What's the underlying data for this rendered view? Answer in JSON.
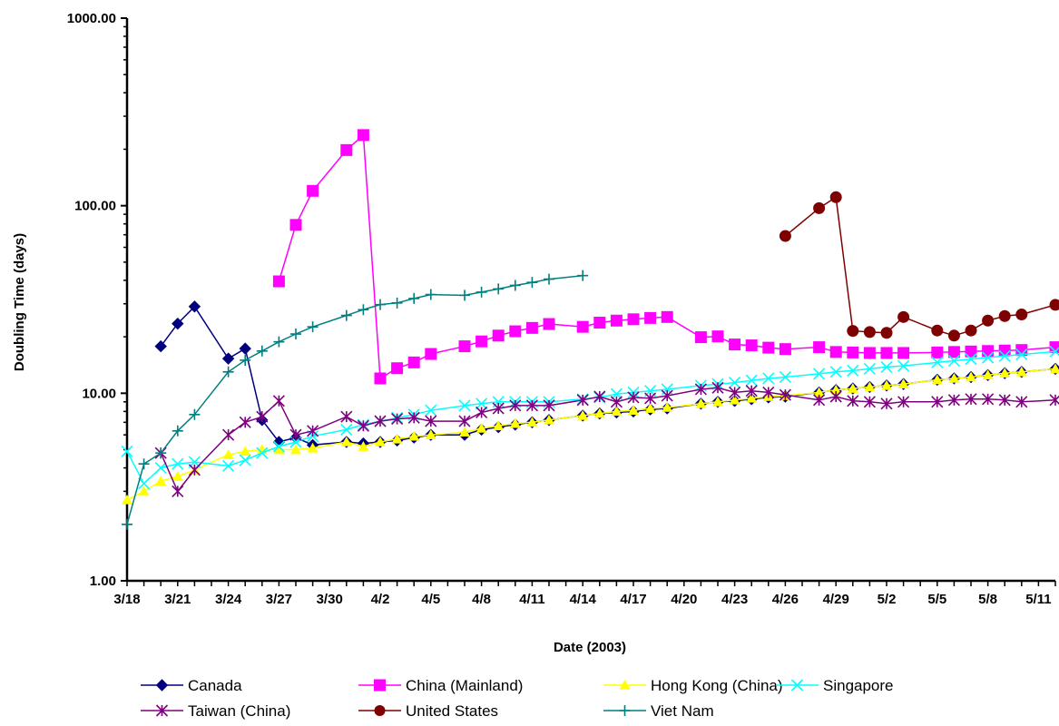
{
  "chart_data": {
    "type": "line",
    "xlabel": "Date (2003)",
    "ylabel": "Doubling Time (days)",
    "y_scale": "log",
    "ylim": [
      1,
      1000
    ],
    "y_ticks": [
      {
        "value": 1,
        "label": "1.00"
      },
      {
        "value": 10,
        "label": "10.00"
      },
      {
        "value": 100,
        "label": "100.00"
      },
      {
        "value": 1000,
        "label": "1000.00"
      }
    ],
    "xlim": [
      "3/18",
      "5/12"
    ],
    "x_ticks": [
      "3/18",
      "3/21",
      "3/24",
      "3/27",
      "3/30",
      "4/2",
      "4/5",
      "4/8",
      "4/11",
      "4/14",
      "4/17",
      "4/20",
      "4/23",
      "4/26",
      "4/29",
      "5/2",
      "5/5",
      "5/8",
      "5/11"
    ],
    "grid": false,
    "legend_position": "bottom",
    "series": [
      {
        "name": "Canada",
        "color": "#00007f",
        "marker": "diamond",
        "points": [
          [
            "3/20",
            17.8
          ],
          [
            "3/21",
            23.5
          ],
          [
            "3/22",
            29.0
          ],
          [
            "3/24",
            15.3
          ],
          [
            "3/25",
            17.3
          ],
          [
            "3/26",
            7.2
          ],
          [
            "3/27",
            5.5
          ],
          [
            "3/28",
            5.8
          ],
          [
            "3/29",
            5.3
          ],
          [
            "3/31",
            5.5
          ],
          [
            "4/1",
            5.4
          ],
          [
            "4/2",
            5.5
          ],
          [
            "4/3",
            5.6
          ],
          [
            "4/4",
            5.8
          ],
          [
            "4/5",
            6.0
          ],
          [
            "4/7",
            6.0
          ],
          [
            "4/8",
            6.4
          ],
          [
            "4/9",
            6.6
          ],
          [
            "4/10",
            6.8
          ],
          [
            "4/11",
            7.0
          ],
          [
            "4/12",
            7.2
          ],
          [
            "4/14",
            7.6
          ],
          [
            "4/15",
            7.8
          ],
          [
            "4/16",
            7.9
          ],
          [
            "4/17",
            8.0
          ],
          [
            "4/18",
            8.2
          ],
          [
            "4/19",
            8.3
          ],
          [
            "4/21",
            8.8
          ],
          [
            "4/22",
            9.0
          ],
          [
            "4/23",
            9.1
          ],
          [
            "4/24",
            9.3
          ],
          [
            "4/25",
            9.5
          ],
          [
            "4/26",
            9.6
          ],
          [
            "4/28",
            10.1
          ],
          [
            "4/29",
            10.4
          ],
          [
            "4/30",
            10.6
          ],
          [
            "5/1",
            10.8
          ],
          [
            "5/2",
            11.0
          ],
          [
            "5/3",
            11.2
          ],
          [
            "5/5",
            11.8
          ],
          [
            "5/6",
            12.0
          ],
          [
            "5/7",
            12.2
          ],
          [
            "5/8",
            12.5
          ],
          [
            "5/9",
            12.8
          ],
          [
            "5/10",
            13.0
          ],
          [
            "5/12",
            13.5
          ]
        ]
      },
      {
        "name": "China (Mainland)",
        "color": "#ff00ff",
        "marker": "square",
        "points": [
          [
            "3/27",
            39.5
          ],
          [
            "3/28",
            79
          ],
          [
            "3/29",
            120
          ],
          [
            "3/31",
            198
          ],
          [
            "4/1",
            238
          ],
          [
            "4/2",
            12.0
          ],
          [
            "4/3",
            13.6
          ],
          [
            "4/4",
            14.6
          ],
          [
            "4/5",
            16.2
          ],
          [
            "4/7",
            17.8
          ],
          [
            "4/8",
            18.9
          ],
          [
            "4/9",
            20.3
          ],
          [
            "4/10",
            21.4
          ],
          [
            "4/11",
            22.3
          ],
          [
            "4/12",
            23.4
          ],
          [
            "4/14",
            22.6
          ],
          [
            "4/15",
            23.8
          ],
          [
            "4/16",
            24.4
          ],
          [
            "4/17",
            24.8
          ],
          [
            "4/18",
            25.2
          ],
          [
            "4/19",
            25.5
          ],
          [
            "4/21",
            19.9
          ],
          [
            "4/22",
            20.1
          ],
          [
            "4/23",
            18.2
          ],
          [
            "4/24",
            18.0
          ],
          [
            "4/25",
            17.5
          ],
          [
            "4/26",
            17.2
          ],
          [
            "4/28",
            17.6
          ],
          [
            "4/29",
            16.6
          ],
          [
            "4/30",
            16.5
          ],
          [
            "5/1",
            16.4
          ],
          [
            "5/2",
            16.4
          ],
          [
            "5/3",
            16.4
          ],
          [
            "5/5",
            16.5
          ],
          [
            "5/6",
            16.6
          ],
          [
            "5/7",
            16.7
          ],
          [
            "5/8",
            16.8
          ],
          [
            "5/9",
            16.9
          ],
          [
            "5/10",
            17.0
          ],
          [
            "5/12",
            17.6
          ]
        ]
      },
      {
        "name": "Hong Kong (China)",
        "color": "#ffff00",
        "marker": "triangle",
        "points": [
          [
            "3/18",
            2.7
          ],
          [
            "3/19",
            3.0
          ],
          [
            "3/20",
            3.4
          ],
          [
            "3/21",
            3.6
          ],
          [
            "3/22",
            3.9
          ],
          [
            "3/24",
            4.7
          ],
          [
            "3/25",
            4.9
          ],
          [
            "3/26",
            5.0
          ],
          [
            "3/27",
            5.0
          ],
          [
            "3/28",
            5.0
          ],
          [
            "3/29",
            5.1
          ],
          [
            "3/31",
            5.5
          ],
          [
            "4/1",
            5.2
          ],
          [
            "4/2",
            5.5
          ],
          [
            "4/3",
            5.7
          ],
          [
            "4/4",
            5.9
          ],
          [
            "4/5",
            6.0
          ],
          [
            "4/7",
            6.2
          ],
          [
            "4/8",
            6.5
          ],
          [
            "4/9",
            6.7
          ],
          [
            "4/10",
            6.9
          ],
          [
            "4/11",
            7.0
          ],
          [
            "4/12",
            7.2
          ],
          [
            "4/14",
            7.6
          ],
          [
            "4/15",
            7.8
          ],
          [
            "4/16",
            8.0
          ],
          [
            "4/17",
            8.1
          ],
          [
            "4/18",
            8.3
          ],
          [
            "4/19",
            8.4
          ],
          [
            "4/21",
            8.8
          ],
          [
            "4/22",
            9.0
          ],
          [
            "4/23",
            9.2
          ],
          [
            "4/24",
            9.4
          ],
          [
            "4/25",
            9.6
          ],
          [
            "4/26",
            9.7
          ],
          [
            "4/28",
            10.1
          ],
          [
            "4/29",
            10.4
          ],
          [
            "4/30",
            10.6
          ],
          [
            "5/1",
            10.8
          ],
          [
            "5/2",
            11.0
          ],
          [
            "5/3",
            11.2
          ],
          [
            "5/5",
            11.8
          ],
          [
            "5/6",
            12.0
          ],
          [
            "5/7",
            12.2
          ],
          [
            "5/8",
            12.5
          ],
          [
            "5/9",
            12.8
          ],
          [
            "5/10",
            13.0
          ],
          [
            "5/12",
            13.5
          ]
        ]
      },
      {
        "name": "Singapore",
        "color": "#00ffff",
        "marker": "x",
        "points": [
          [
            "3/18",
            4.9
          ],
          [
            "3/19",
            3.3
          ],
          [
            "3/20",
            4.0
          ],
          [
            "3/21",
            4.2
          ],
          [
            "3/22",
            4.3
          ],
          [
            "3/24",
            4.1
          ],
          [
            "3/25",
            4.4
          ],
          [
            "3/26",
            4.8
          ],
          [
            "3/27",
            5.2
          ],
          [
            "3/28",
            5.5
          ],
          [
            "3/29",
            5.9
          ],
          [
            "3/31",
            6.4
          ],
          [
            "4/1",
            6.8
          ],
          [
            "4/2",
            7.1
          ],
          [
            "4/3",
            7.4
          ],
          [
            "4/4",
            7.7
          ],
          [
            "4/5",
            8.1
          ],
          [
            "4/7",
            8.6
          ],
          [
            "4/8",
            8.8
          ],
          [
            "4/9",
            9.0
          ],
          [
            "4/10",
            9.0
          ],
          [
            "4/11",
            9.0
          ],
          [
            "4/12",
            9.0
          ],
          [
            "4/14",
            9.3
          ],
          [
            "4/15",
            9.5
          ],
          [
            "4/16",
            9.9
          ],
          [
            "4/17",
            10.1
          ],
          [
            "4/18",
            10.3
          ],
          [
            "4/19",
            10.5
          ],
          [
            "4/21",
            11.0
          ],
          [
            "4/22",
            11.2
          ],
          [
            "4/23",
            11.4
          ],
          [
            "4/24",
            11.7
          ],
          [
            "4/25",
            12.0
          ],
          [
            "4/26",
            12.2
          ],
          [
            "4/28",
            12.7
          ],
          [
            "4/29",
            13.0
          ],
          [
            "4/30",
            13.2
          ],
          [
            "5/1",
            13.5
          ],
          [
            "5/2",
            13.8
          ],
          [
            "5/3",
            14.0
          ],
          [
            "5/5",
            14.6
          ],
          [
            "5/6",
            14.9
          ],
          [
            "5/7",
            15.2
          ],
          [
            "5/8",
            15.5
          ],
          [
            "5/9",
            15.8
          ],
          [
            "5/10",
            16.1
          ],
          [
            "5/12",
            16.7
          ]
        ]
      },
      {
        "name": "Taiwan (China)",
        "color": "#7f007f",
        "marker": "star",
        "points": [
          [
            "3/20",
            4.8
          ],
          [
            "3/21",
            3.0
          ],
          [
            "3/22",
            3.9
          ],
          [
            "3/24",
            6.0
          ],
          [
            "3/25",
            7.0
          ],
          [
            "3/26",
            7.5
          ],
          [
            "3/27",
            9.1
          ],
          [
            "3/28",
            6.0
          ],
          [
            "3/29",
            6.3
          ],
          [
            "3/31",
            7.5
          ],
          [
            "4/1",
            6.7
          ],
          [
            "4/2",
            7.1
          ],
          [
            "4/3",
            7.3
          ],
          [
            "4/4",
            7.4
          ],
          [
            "4/5",
            7.1
          ],
          [
            "4/7",
            7.1
          ],
          [
            "4/8",
            7.9
          ],
          [
            "4/9",
            8.3
          ],
          [
            "4/10",
            8.6
          ],
          [
            "4/11",
            8.6
          ],
          [
            "4/12",
            8.6
          ],
          [
            "4/14",
            9.2
          ],
          [
            "4/15",
            9.6
          ],
          [
            "4/16",
            9.0
          ],
          [
            "4/17",
            9.5
          ],
          [
            "4/18",
            9.4
          ],
          [
            "4/19",
            9.7
          ],
          [
            "4/21",
            10.5
          ],
          [
            "4/22",
            10.7
          ],
          [
            "4/23",
            10.1
          ],
          [
            "4/24",
            10.3
          ],
          [
            "4/25",
            10.1
          ],
          [
            "4/26",
            9.8
          ],
          [
            "4/28",
            9.2
          ],
          [
            "4/29",
            9.6
          ],
          [
            "4/30",
            9.1
          ],
          [
            "5/1",
            9.0
          ],
          [
            "5/2",
            8.8
          ],
          [
            "5/3",
            9.0
          ],
          [
            "5/5",
            9.0
          ],
          [
            "5/6",
            9.2
          ],
          [
            "5/7",
            9.3
          ],
          [
            "5/8",
            9.3
          ],
          [
            "5/9",
            9.2
          ],
          [
            "5/10",
            9.0
          ],
          [
            "5/12",
            9.2
          ]
        ]
      },
      {
        "name": "United States",
        "color": "#7f0000",
        "marker": "circle",
        "points": [
          [
            "4/26",
            69
          ],
          [
            "4/28",
            97
          ],
          [
            "4/29",
            111
          ],
          [
            "4/30",
            21.5
          ],
          [
            "5/1",
            21.2
          ],
          [
            "5/2",
            21.0
          ],
          [
            "5/3",
            25.5
          ],
          [
            "5/5",
            21.6
          ],
          [
            "5/6",
            20.3
          ],
          [
            "5/7",
            21.6
          ],
          [
            "5/8",
            24.4
          ],
          [
            "5/9",
            25.8
          ],
          [
            "5/10",
            26.3
          ],
          [
            "5/12",
            29.6
          ]
        ]
      },
      {
        "name": "Viet Nam",
        "color": "#007f7f",
        "marker": "plus",
        "points": [
          [
            "3/18",
            2.0
          ],
          [
            "3/19",
            4.2
          ],
          [
            "3/20",
            4.8
          ],
          [
            "3/21",
            6.3
          ],
          [
            "3/22",
            7.7
          ],
          [
            "3/24",
            13.0
          ],
          [
            "3/25",
            15.0
          ],
          [
            "3/26",
            16.8
          ],
          [
            "3/27",
            18.8
          ],
          [
            "3/28",
            20.7
          ],
          [
            "3/29",
            22.6
          ],
          [
            "3/31",
            26.0
          ],
          [
            "4/1",
            27.9
          ],
          [
            "4/2",
            29.7
          ],
          [
            "4/3",
            30.3
          ],
          [
            "4/4",
            32.0
          ],
          [
            "4/5",
            33.6
          ],
          [
            "4/7",
            33.3
          ],
          [
            "4/8",
            34.6
          ],
          [
            "4/9",
            36.0
          ],
          [
            "4/10",
            37.6
          ],
          [
            "4/11",
            39.0
          ],
          [
            "4/12",
            40.6
          ],
          [
            "4/14",
            42.4
          ]
        ]
      }
    ]
  }
}
